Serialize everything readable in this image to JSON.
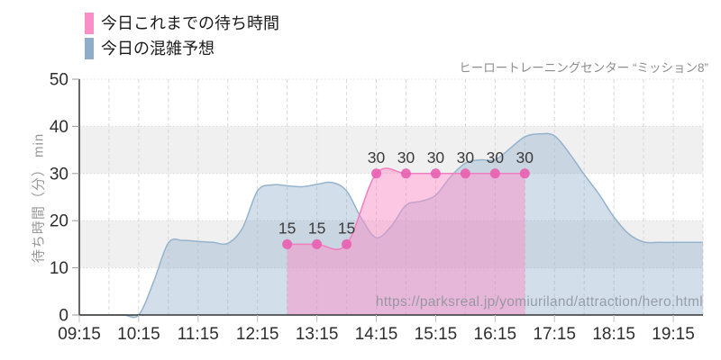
{
  "legend": {
    "items": [
      {
        "label": "今日これまでの待ち時間",
        "color": "#f98fc7"
      },
      {
        "label": "今日の混雑予想",
        "color": "#8fadc9"
      }
    ]
  },
  "title": "ヒーロートレーニングセンター “ミッション8”",
  "watermark": "https://parksreal.jp/yomiuriland/attraction/hero.html",
  "chart_data": {
    "type": "area",
    "title": "ヒーロートレーニングセンター “ミッション8”",
    "ylabel": "待ち時間（分） min",
    "ylim": [
      0,
      50
    ],
    "yticks": [
      0,
      10,
      20,
      30,
      40,
      50
    ],
    "x_domain": [
      "09:15",
      "19:45"
    ],
    "xticks": [
      "09:15",
      "10:15",
      "11:15",
      "12:15",
      "13:15",
      "14:15",
      "15:15",
      "16:15",
      "17:15",
      "18:15",
      "19:15"
    ],
    "grid": {
      "vertical_every_minutes": 30,
      "horizontal_step": 10,
      "bands": [
        [
          10,
          20
        ],
        [
          30,
          40
        ]
      ],
      "band_color": "#f0f0f1",
      "grid_color": "#d8d8d8"
    },
    "series": [
      {
        "name": "今日の混雑予想",
        "type": "area",
        "line_color": "#96b3cd",
        "fill_color": "rgba(143,173,201,0.40)",
        "smooth": true,
        "markers": false,
        "points": [
          [
            "09:15",
            0
          ],
          [
            "09:30",
            0
          ],
          [
            "09:45",
            0
          ],
          [
            "10:00",
            0
          ],
          [
            "10:15",
            0
          ],
          [
            "10:30",
            7
          ],
          [
            "10:45",
            15.3
          ],
          [
            "11:00",
            15.8
          ],
          [
            "11:15",
            15.6
          ],
          [
            "11:30",
            15.4
          ],
          [
            "11:45",
            15.2
          ],
          [
            "12:00",
            18.5
          ],
          [
            "12:15",
            26.3
          ],
          [
            "12:30",
            27.6
          ],
          [
            "12:45",
            27.4
          ],
          [
            "13:00",
            27.2
          ],
          [
            "13:15",
            27.7
          ],
          [
            "13:30",
            28.1
          ],
          [
            "13:45",
            26.3
          ],
          [
            "14:00",
            20.5
          ],
          [
            "14:15",
            16.4
          ],
          [
            "14:30",
            18.8
          ],
          [
            "14:45",
            23.3
          ],
          [
            "15:00",
            24.1
          ],
          [
            "15:15",
            25.4
          ],
          [
            "15:30",
            29.3
          ],
          [
            "15:45",
            32.2
          ],
          [
            "16:00",
            32.9
          ],
          [
            "16:15",
            32.9
          ],
          [
            "16:30",
            35.3
          ],
          [
            "16:45",
            37.8
          ],
          [
            "17:00",
            38.4
          ],
          [
            "17:15",
            38.0
          ],
          [
            "17:30",
            34.3
          ],
          [
            "17:45",
            29.8
          ],
          [
            "18:00",
            25.6
          ],
          [
            "18:15",
            20.8
          ],
          [
            "18:30",
            17.2
          ],
          [
            "18:45",
            15.5
          ],
          [
            "19:00",
            15.4
          ],
          [
            "19:15",
            15.4
          ],
          [
            "19:30",
            15.4
          ],
          [
            "19:45",
            15.4
          ]
        ]
      },
      {
        "name": "今日これまでの待ち時間",
        "type": "area",
        "line_color": "#f07ec0",
        "fill_color": "rgba(249,143,199,0.50)",
        "marker_color": "#e95fb0",
        "marker_radius": 5.5,
        "smooth": true,
        "markers": true,
        "show_point_labels": true,
        "label_color": "#3c3c3c",
        "points": [
          [
            "12:45",
            15
          ],
          [
            "13:15",
            15
          ],
          [
            "13:45",
            15
          ],
          [
            "14:15",
            30
          ],
          [
            "14:45",
            30
          ],
          [
            "15:15",
            30
          ],
          [
            "15:45",
            30
          ],
          [
            "16:15",
            30
          ],
          [
            "16:45",
            30
          ]
        ]
      }
    ]
  }
}
